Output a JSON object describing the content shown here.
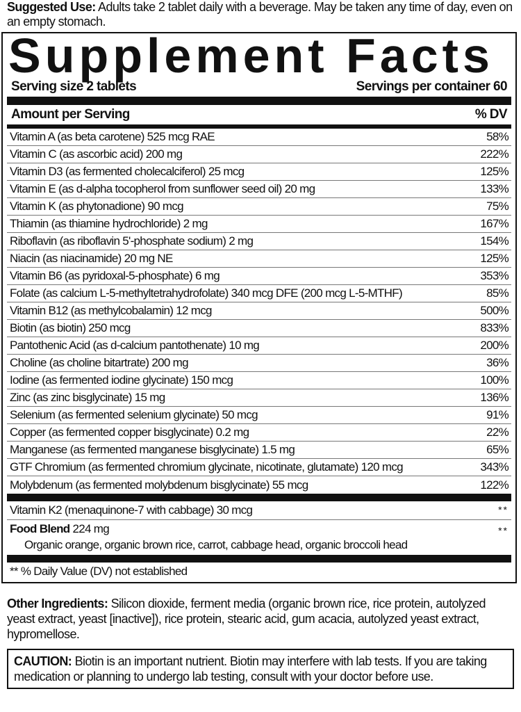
{
  "suggested_use": {
    "label": "Suggested Use:",
    "text": " Adults take 2 tablet daily with a beverage. May be taken any time of day, even on an empty stomach."
  },
  "facts": {
    "title": "Supplement Facts",
    "serving_size": "Serving size 2 tablets",
    "servings_per_container": "Servings per container 60",
    "amount_header": "Amount per Serving",
    "dv_header": "% DV",
    "rows": [
      {
        "name": "Vitamin A  (as beta carotene) 525 mcg RAE",
        "dv": "58%"
      },
      {
        "name": "Vitamin C (as ascorbic acid) 200 mg",
        "dv": "222%"
      },
      {
        "name": "Vitamin D3 (as fermented cholecalciferol) 25 mcg",
        "dv": "125%"
      },
      {
        "name": "Vitamin E (as d-alpha tocopherol from sunflower seed oil) 20 mg",
        "dv": "133%"
      },
      {
        "name": "Vitamin K (as phytonadione) 90 mcg",
        "dv": "75%"
      },
      {
        "name": "Thiamin (as thiamine hydrochloride) 2 mg",
        "dv": "167%"
      },
      {
        "name": "Riboflavin (as riboflavin 5'-phosphate sodium) 2 mg",
        "dv": "154%"
      },
      {
        "name": "Niacin (as niacinamide) 20 mg NE",
        "dv": "125%"
      },
      {
        "name": "Vitamin B6 (as pyridoxal-5-phosphate) 6 mg",
        "dv": "353%"
      },
      {
        "name": "Folate (as calcium L-5-methyltetrahydrofolate) 340 mcg DFE (200 mcg L-5-MTHF)",
        "dv": "85%"
      },
      {
        "name": "Vitamin B12 (as methylcobalamin) 12 mcg",
        "dv": "500%"
      },
      {
        "name": "Biotin (as biotin) 250 mcg",
        "dv": "833%"
      },
      {
        "name": "Pantothenic Acid (as d-calcium pantothenate) 10 mg",
        "dv": "200%"
      },
      {
        "name": "Choline (as choline bitartrate) 200 mg",
        "dv": "36%"
      },
      {
        "name": "Iodine (as fermented iodine glycinate) 150 mcg",
        "dv": "100%"
      },
      {
        "name": "Zinc (as zinc bisglycinate) 15 mg",
        "dv": "136%"
      },
      {
        "name": "Selenium (as fermented selenium glycinate) 50 mcg",
        "dv": "91%"
      },
      {
        "name": "Copper (as fermented copper bisglycinate) 0.2 mg",
        "dv": "22%"
      },
      {
        "name": "Manganese (as fermented manganese bisglycinate) 1.5 mg",
        "dv": "65%"
      },
      {
        "name": "GTF Chromium (as fermented chromium glycinate, nicotinate, glutamate) 120 mcg",
        "dv": "343%"
      },
      {
        "name": "Molybdenum (as fermented molybdenum bisglycinate) 55 mcg",
        "dv": "122%"
      }
    ],
    "k2": {
      "name": "Vitamin K2 (menaquinone-7 with cabbage) 30 mcg",
      "dv": "**"
    },
    "blend": {
      "label": "Food Blend",
      "amount": " 224 mg",
      "dv": "**",
      "ingredients": "Organic orange, organic brown rice, carrot, cabbage head, organic broccoli head"
    },
    "footnote": "** % Daily Value (DV) not established"
  },
  "other_ingredients": {
    "label": "Other Ingredients:",
    "text": " Silicon dioxide, ferment media (organic brown rice, rice protein, autolyzed yeast extract, yeast [inactive]), rice protein, stearic acid, gum acacia, autolyzed yeast extract, hypromellose."
  },
  "caution": {
    "label": "CAUTION:",
    "text": " Biotin is an important nutrient. Biotin may interfere with lab tests. If you are taking medication or planning to undergo lab testing, consult with your doctor before use."
  }
}
